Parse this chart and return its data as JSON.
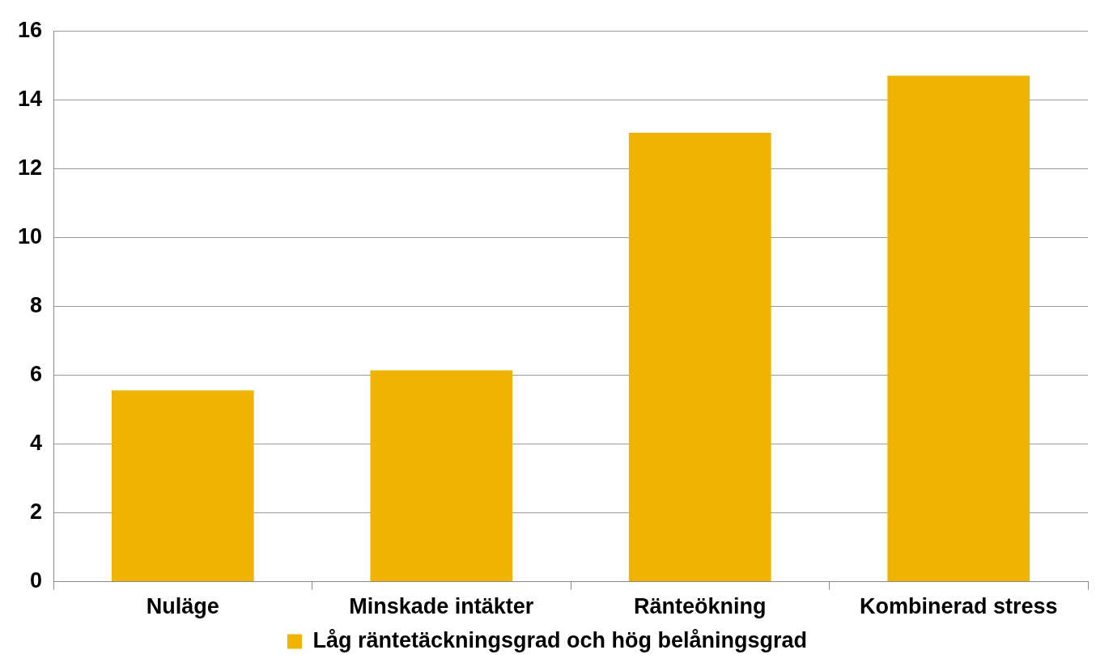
{
  "chart_data": {
    "type": "bar",
    "categories": [
      "Nuläge",
      "Minskade intäkter",
      "Ränteökning",
      "Kombinerad stress"
    ],
    "series": [
      {
        "name": "Låg räntetäckningsgrad och hög belåningsgrad",
        "color": "#f0b400",
        "values": [
          5.56,
          6.14,
          13.04,
          14.7
        ]
      }
    ],
    "ylim": [
      0,
      16
    ],
    "yticks": [
      0,
      2,
      4,
      6,
      8,
      10,
      12,
      14,
      16
    ],
    "grid": "y",
    "legend": "bottom"
  }
}
